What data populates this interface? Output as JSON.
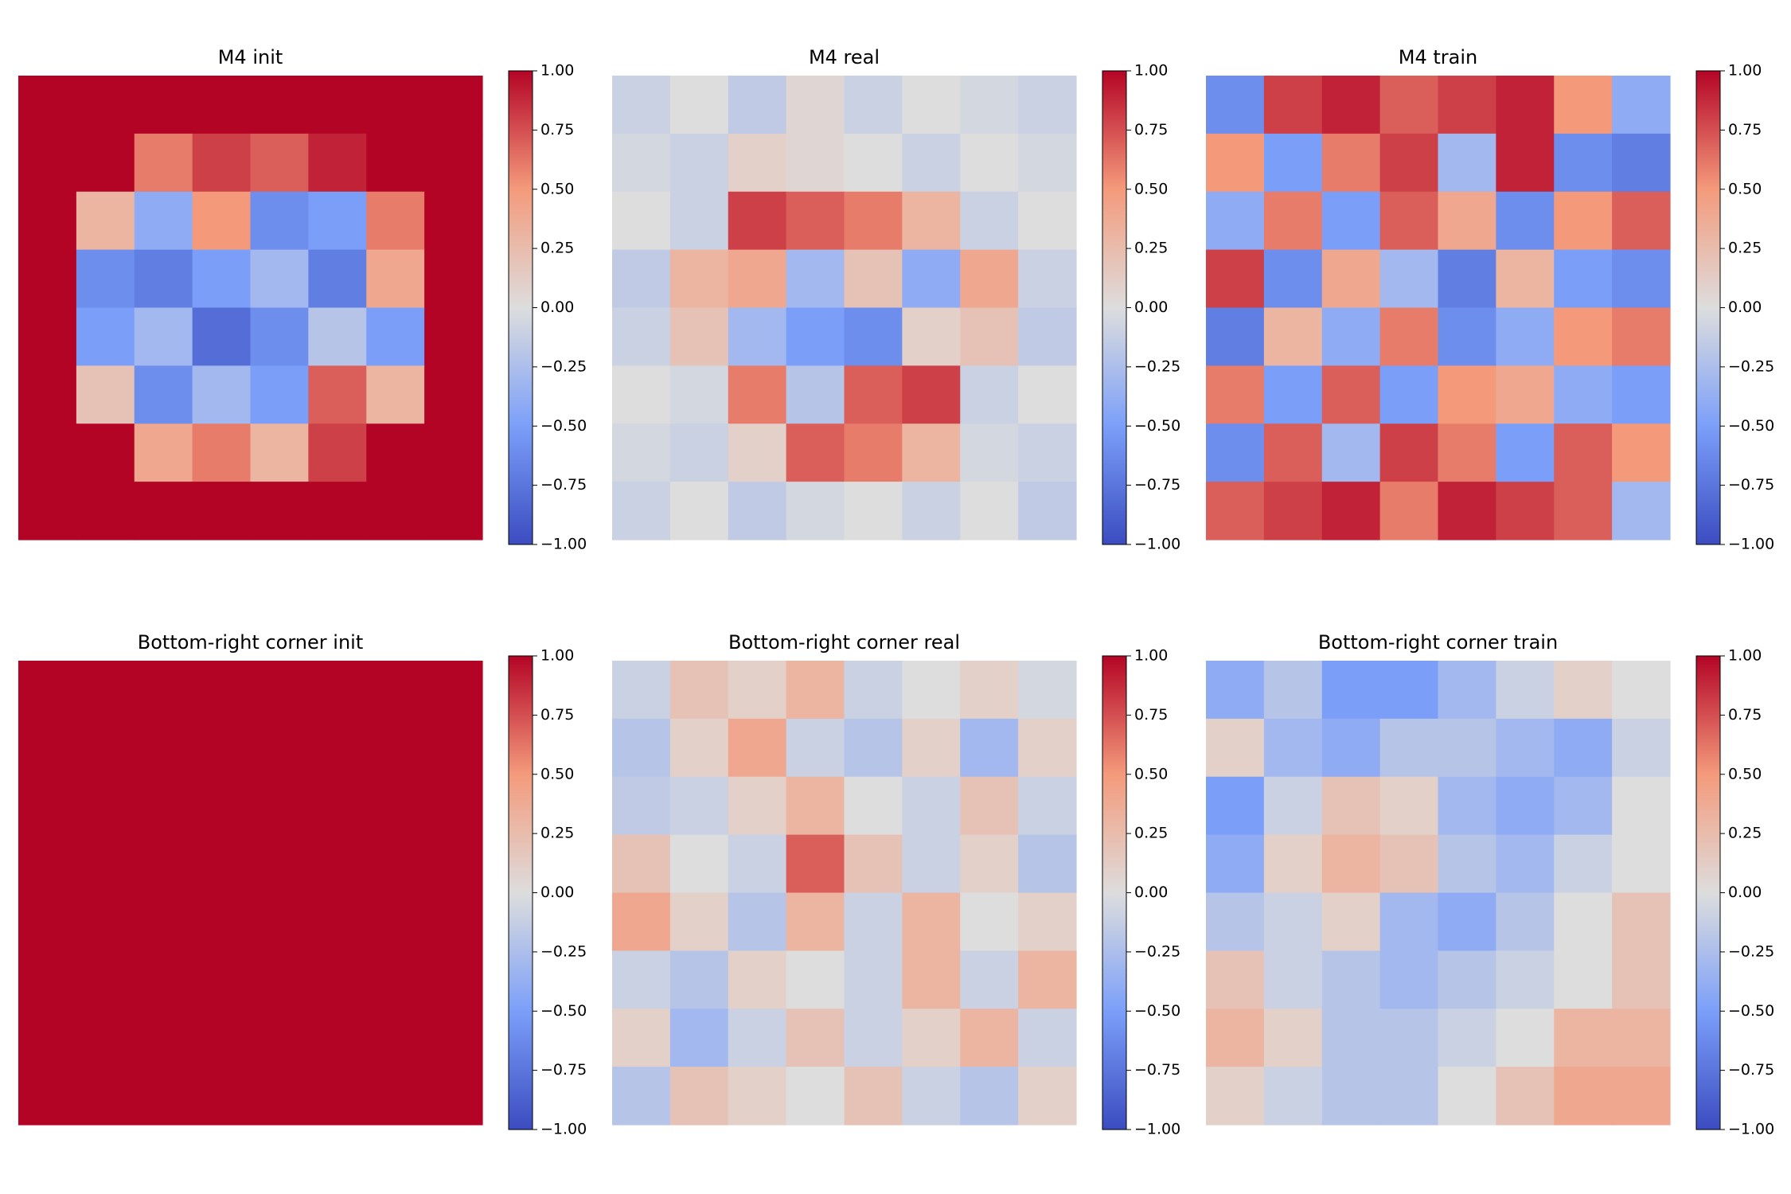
{
  "chart_data": [
    {
      "type": "heatmap",
      "title": "M4 init",
      "colormap": "coolwarm",
      "clim": [
        -1,
        1
      ],
      "cticks": [
        {
          "value": 1,
          "label": "1.00"
        },
        {
          "value": 0.75,
          "label": "0.75"
        },
        {
          "value": 0.5,
          "label": "0.50"
        },
        {
          "value": 0.25,
          "label": "0.25"
        },
        {
          "value": 0,
          "label": "0.00"
        },
        {
          "value": -0.25,
          "label": "−0.25"
        },
        {
          "value": -0.5,
          "label": "−0.50"
        },
        {
          "value": -0.75,
          "label": "−0.75"
        },
        {
          "value": -1,
          "label": "−1.00"
        }
      ],
      "z": [
        [
          1,
          1,
          1,
          1,
          1,
          1,
          1,
          1
        ],
        [
          1,
          1,
          0.6,
          0.8,
          0.7,
          0.9,
          1,
          1
        ],
        [
          1,
          0.3,
          -0.4,
          0.5,
          -0.6,
          -0.5,
          0.6,
          1
        ],
        [
          1,
          -0.6,
          -0.7,
          -0.5,
          -0.3,
          -0.7,
          0.4,
          1
        ],
        [
          1,
          -0.5,
          -0.3,
          -0.8,
          -0.6,
          -0.2,
          -0.5,
          1
        ],
        [
          1,
          0.2,
          -0.6,
          -0.3,
          -0.5,
          0.7,
          0.3,
          1
        ],
        [
          1,
          1,
          0.4,
          0.6,
          0.3,
          0.8,
          1,
          1
        ],
        [
          1,
          1,
          1,
          1,
          1,
          1,
          1,
          1
        ]
      ]
    },
    {
      "type": "heatmap",
      "title": "M4 real",
      "colormap": "coolwarm",
      "clim": [
        -1,
        1
      ],
      "cticks": [
        {
          "value": 1,
          "label": "1.00"
        },
        {
          "value": 0.75,
          "label": "0.75"
        },
        {
          "value": 0.5,
          "label": "0.50"
        },
        {
          "value": 0.25,
          "label": "0.25"
        },
        {
          "value": 0,
          "label": "0.00"
        },
        {
          "value": -0.25,
          "label": "−0.25"
        },
        {
          "value": -0.5,
          "label": "−0.50"
        },
        {
          "value": -0.75,
          "label": "−0.75"
        },
        {
          "value": -1,
          "label": "−1.00"
        }
      ],
      "z": [
        [
          -0.1,
          0,
          -0.15,
          0.05,
          -0.1,
          0,
          -0.05,
          -0.1
        ],
        [
          -0.05,
          -0.1,
          0.1,
          0.05,
          0,
          -0.1,
          0,
          -0.05
        ],
        [
          0,
          -0.1,
          0.8,
          0.7,
          0.6,
          0.3,
          -0.1,
          0
        ],
        [
          -0.15,
          0.3,
          0.4,
          -0.3,
          0.2,
          -0.4,
          0.4,
          -0.1
        ],
        [
          -0.1,
          0.2,
          -0.3,
          -0.5,
          -0.6,
          0.1,
          0.2,
          -0.15
        ],
        [
          0,
          -0.05,
          0.6,
          -0.2,
          0.7,
          0.8,
          -0.1,
          0
        ],
        [
          -0.05,
          -0.1,
          0.1,
          0.7,
          0.6,
          0.3,
          -0.05,
          -0.1
        ],
        [
          -0.1,
          0,
          -0.15,
          -0.05,
          0,
          -0.1,
          0,
          -0.15
        ]
      ]
    },
    {
      "type": "heatmap",
      "title": "M4 train",
      "colormap": "coolwarm",
      "clim": [
        -1,
        1
      ],
      "cticks": [
        {
          "value": 1,
          "label": "1.00"
        },
        {
          "value": 0.75,
          "label": "0.75"
        },
        {
          "value": 0.5,
          "label": "0.50"
        },
        {
          "value": 0.25,
          "label": "0.25"
        },
        {
          "value": 0,
          "label": "0.00"
        },
        {
          "value": -0.25,
          "label": "−0.25"
        },
        {
          "value": -0.5,
          "label": "−0.50"
        },
        {
          "value": -0.75,
          "label": "−0.75"
        },
        {
          "value": -1,
          "label": "−1.00"
        }
      ],
      "z": [
        [
          -0.6,
          0.8,
          0.9,
          0.7,
          0.8,
          0.9,
          0.5,
          -0.4
        ],
        [
          0.5,
          -0.5,
          0.6,
          0.8,
          -0.3,
          0.9,
          -0.6,
          -0.7
        ],
        [
          -0.4,
          0.6,
          -0.5,
          0.7,
          0.4,
          -0.6,
          0.5,
          0.7
        ],
        [
          0.8,
          -0.6,
          0.4,
          -0.3,
          -0.7,
          0.3,
          -0.5,
          -0.6
        ],
        [
          -0.7,
          0.3,
          -0.4,
          0.6,
          -0.6,
          -0.4,
          0.5,
          0.6
        ],
        [
          0.6,
          -0.5,
          0.7,
          -0.5,
          0.5,
          0.4,
          -0.4,
          -0.5
        ],
        [
          -0.6,
          0.7,
          -0.3,
          0.8,
          0.6,
          -0.5,
          0.7,
          0.5
        ],
        [
          0.7,
          0.8,
          0.9,
          0.6,
          0.9,
          0.8,
          0.7,
          -0.3
        ]
      ]
    },
    {
      "type": "heatmap",
      "title": "Bottom-right corner init",
      "colormap": "coolwarm",
      "clim": [
        -1,
        1
      ],
      "cticks": [
        {
          "value": 1,
          "label": "1.00"
        },
        {
          "value": 0.75,
          "label": "0.75"
        },
        {
          "value": 0.5,
          "label": "0.50"
        },
        {
          "value": 0.25,
          "label": "0.25"
        },
        {
          "value": 0,
          "label": "0.00"
        },
        {
          "value": -0.25,
          "label": "−0.25"
        },
        {
          "value": -0.5,
          "label": "−0.50"
        },
        {
          "value": -0.75,
          "label": "−0.75"
        },
        {
          "value": -1,
          "label": "−1.00"
        }
      ],
      "z": [
        [
          1
        ]
      ]
    },
    {
      "type": "heatmap",
      "title": "Bottom-right corner real",
      "colormap": "coolwarm",
      "clim": [
        -1,
        1
      ],
      "cticks": [
        {
          "value": 1,
          "label": "1.00"
        },
        {
          "value": 0.75,
          "label": "0.75"
        },
        {
          "value": 0.5,
          "label": "0.50"
        },
        {
          "value": 0.25,
          "label": "0.25"
        },
        {
          "value": 0,
          "label": "0.00"
        },
        {
          "value": -0.25,
          "label": "−0.25"
        },
        {
          "value": -0.5,
          "label": "−0.50"
        },
        {
          "value": -0.75,
          "label": "−0.75"
        },
        {
          "value": -1,
          "label": "−1.00"
        }
      ],
      "z": [
        [
          -0.1,
          0.2,
          0.1,
          0.3,
          -0.1,
          0,
          0.1,
          -0.05
        ],
        [
          -0.2,
          0.1,
          0.4,
          -0.1,
          -0.2,
          0.1,
          -0.3,
          0.1
        ],
        [
          -0.15,
          -0.1,
          0.1,
          0.3,
          0,
          -0.1,
          0.2,
          -0.1
        ],
        [
          0.2,
          0,
          -0.1,
          0.7,
          0.2,
          -0.1,
          0.1,
          -0.2
        ],
        [
          0.4,
          0.1,
          -0.2,
          0.3,
          -0.1,
          0.3,
          0,
          0.1
        ],
        [
          -0.1,
          -0.2,
          0.1,
          0,
          -0.1,
          0.3,
          -0.1,
          0.3
        ],
        [
          0.1,
          -0.3,
          -0.1,
          0.2,
          -0.1,
          0.1,
          0.3,
          -0.1
        ],
        [
          -0.2,
          0.2,
          0.1,
          0,
          0.2,
          -0.1,
          -0.2,
          0.1
        ]
      ]
    },
    {
      "type": "heatmap",
      "title": "Bottom-right corner train",
      "colormap": "coolwarm",
      "clim": [
        -1,
        1
      ],
      "cticks": [
        {
          "value": 1,
          "label": "1.00"
        },
        {
          "value": 0.75,
          "label": "0.75"
        },
        {
          "value": 0.5,
          "label": "0.50"
        },
        {
          "value": 0.25,
          "label": "0.25"
        },
        {
          "value": 0,
          "label": "0.00"
        },
        {
          "value": -0.25,
          "label": "−0.25"
        },
        {
          "value": -0.5,
          "label": "−0.50"
        },
        {
          "value": -0.75,
          "label": "−0.75"
        },
        {
          "value": -1,
          "label": "−1.00"
        }
      ],
      "z": [
        [
          -0.4,
          -0.2,
          -0.5,
          -0.5,
          -0.3,
          -0.1,
          0.1,
          0
        ],
        [
          0.1,
          -0.3,
          -0.4,
          -0.2,
          -0.2,
          -0.3,
          -0.4,
          -0.1
        ],
        [
          -0.5,
          -0.1,
          0.2,
          0.1,
          -0.3,
          -0.4,
          -0.3,
          0
        ],
        [
          -0.4,
          0.1,
          0.3,
          0.2,
          -0.2,
          -0.3,
          -0.1,
          0
        ],
        [
          -0.2,
          -0.1,
          0.1,
          -0.3,
          -0.4,
          -0.2,
          0,
          0.2
        ],
        [
          0.2,
          -0.1,
          -0.2,
          -0.3,
          -0.2,
          -0.1,
          0,
          0.2
        ],
        [
          0.3,
          0.1,
          -0.2,
          -0.2,
          -0.1,
          0,
          0.3,
          0.3
        ],
        [
          0.1,
          -0.1,
          -0.2,
          -0.2,
          0,
          0.2,
          0.4,
          0.4
        ]
      ]
    }
  ]
}
